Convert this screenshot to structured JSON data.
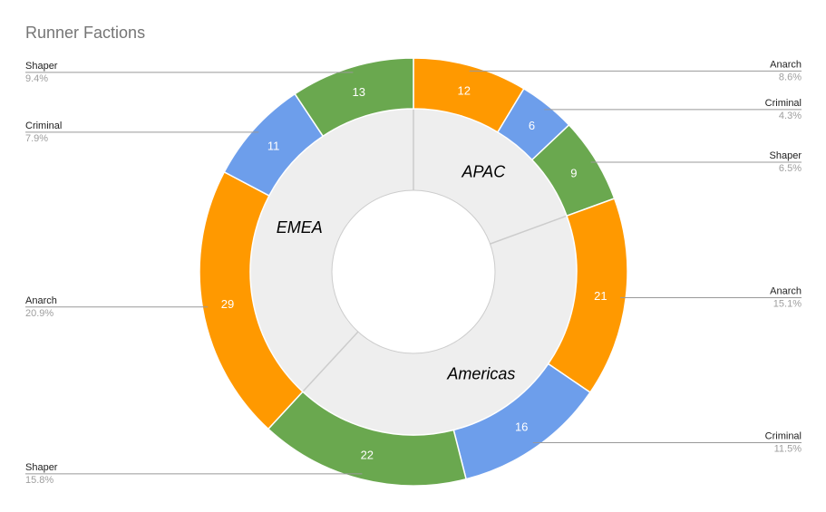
{
  "chart_data": {
    "type": "pie",
    "subtype": "sunburst",
    "title": "Runner Factions",
    "regions": [
      "APAC",
      "Americas",
      "EMEA"
    ],
    "series": [
      {
        "region": "APAC",
        "faction": "Anarch",
        "value": 12,
        "percent_label": "8.6%",
        "color": "#ff9900"
      },
      {
        "region": "APAC",
        "faction": "Criminal",
        "value": 6,
        "percent_label": "4.3%",
        "color": "#6d9eeb"
      },
      {
        "region": "APAC",
        "faction": "Shaper",
        "value": 9,
        "percent_label": "6.5%",
        "color": "#6aa84f"
      },
      {
        "region": "Americas",
        "faction": "Anarch",
        "value": 21,
        "percent_label": "15.1%",
        "color": "#ff9900"
      },
      {
        "region": "Americas",
        "faction": "Criminal",
        "value": 16,
        "percent_label": "11.5%",
        "color": "#6d9eeb"
      },
      {
        "region": "Americas",
        "faction": "Shaper",
        "value": 22,
        "percent_label": "15.8%",
        "color": "#6aa84f"
      },
      {
        "region": "EMEA",
        "faction": "Anarch",
        "value": 29,
        "percent_label": "20.9%",
        "color": "#ff9900"
      },
      {
        "region": "EMEA",
        "faction": "Criminal",
        "value": 11,
        "percent_label": "7.9%",
        "color": "#6d9eeb"
      },
      {
        "region": "EMEA",
        "faction": "Shaper",
        "value": 13,
        "percent_label": "9.4%",
        "color": "#6aa84f"
      }
    ],
    "colors": {
      "inner_ring": "#eeeeee",
      "separator": "#cccccc",
      "leader": "#999999",
      "label": "#212121",
      "percent": "#9e9e9e"
    }
  }
}
